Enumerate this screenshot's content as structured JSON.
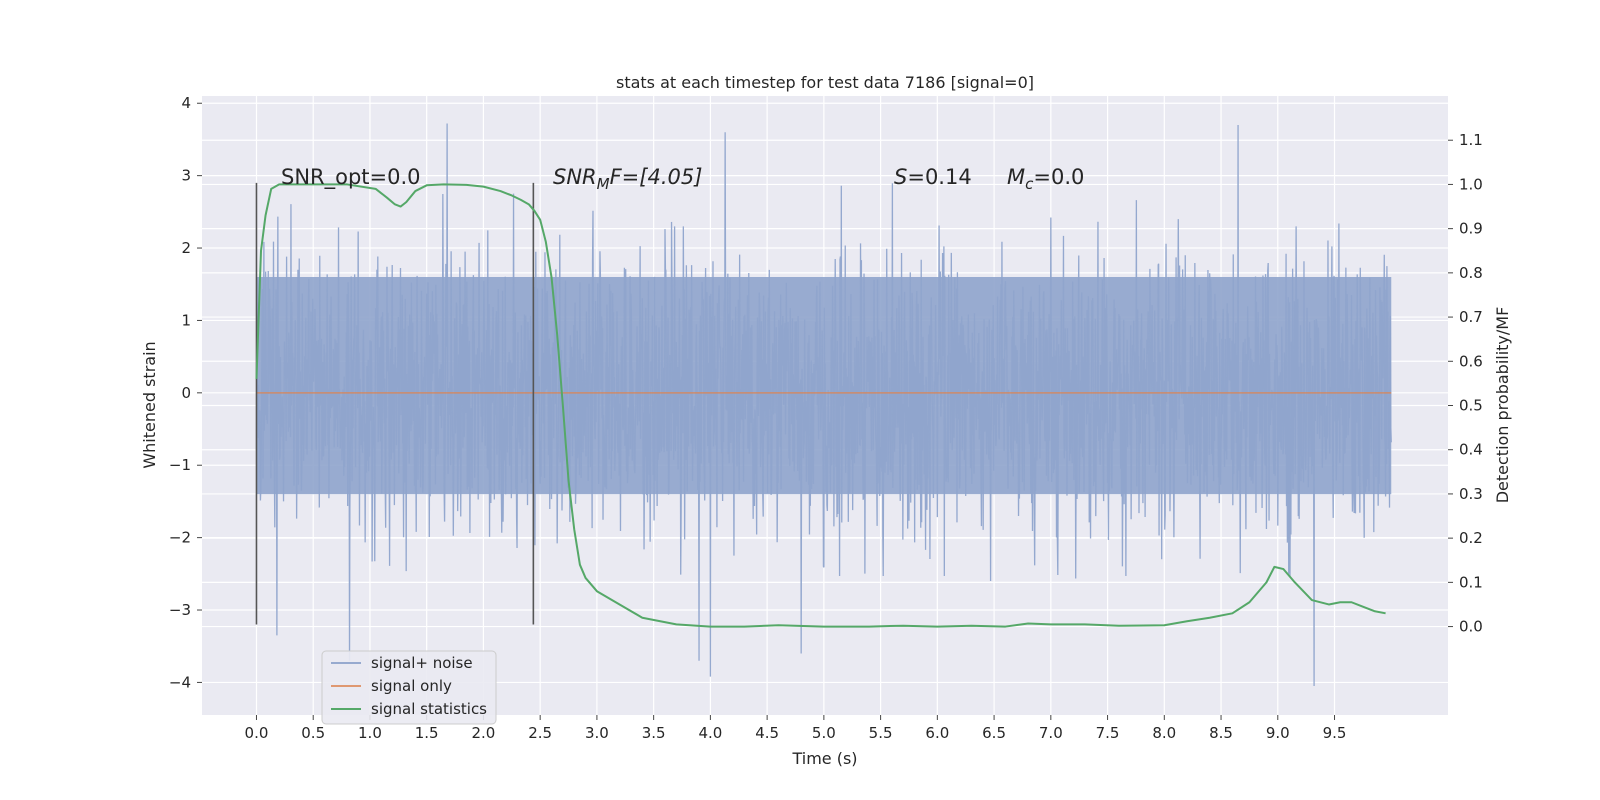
{
  "chart_data": {
    "type": "line",
    "title": "stats at each timestep for test data 7186 [signal=0]",
    "xlabel": "Time (s)",
    "ylabel": "Whitened strain",
    "y2label": "Detection probability/MF",
    "xlim": [
      -0.48,
      10.5
    ],
    "ylim": [
      -4.45,
      4.1
    ],
    "y2lim": [
      -0.2,
      1.2
    ],
    "x_ticks": [
      0.0,
      0.5,
      1.0,
      1.5,
      2.0,
      2.5,
      3.0,
      3.5,
      4.0,
      4.5,
      5.0,
      5.5,
      6.0,
      6.5,
      7.0,
      7.5,
      8.0,
      8.5,
      9.0,
      9.5
    ],
    "x_tick_labels": [
      "0.0",
      "0.5",
      "1.0",
      "1.5",
      "2.0",
      "2.5",
      "3.0",
      "3.5",
      "4.0",
      "4.5",
      "5.0",
      "5.5",
      "6.0",
      "6.5",
      "7.0",
      "7.5",
      "8.0",
      "8.5",
      "9.0",
      "9.5"
    ],
    "y_ticks": [
      4,
      3,
      2,
      1,
      0,
      -1,
      -2,
      -3,
      -4
    ],
    "y_tick_labels": [
      "4",
      "3",
      "2",
      "1",
      "0",
      "−1",
      "−2",
      "−3",
      "−4"
    ],
    "y2_ticks": [
      1.1,
      1.0,
      0.9,
      0.8,
      0.7,
      0.6,
      0.5,
      0.4,
      0.3,
      0.2,
      0.1,
      0.0
    ],
    "y2_tick_labels": [
      "1.1",
      "1.0",
      "0.9",
      "0.8",
      "0.7",
      "0.6",
      "0.5",
      "0.4",
      "0.3",
      "0.2",
      "0.1",
      "0.0"
    ],
    "grid": true,
    "legend_position": "lower-left",
    "annotations": {
      "snr_opt": "SNR_opt=0.0",
      "snr_mf_base": "SNR",
      "snr_mf_sub": "M",
      "snr_mf_tail": "F=[4.05]",
      "s_base": "S",
      "s_tail": "=0.14",
      "mc_base": "M",
      "mc_sub": "c",
      "mc_tail": "=0.0"
    },
    "vertical_markers": [
      0.0,
      2.44
    ],
    "vertical_marker_range": [
      -3.2,
      2.9
    ],
    "series": [
      {
        "name": "signal+ noise",
        "color": "#8fa4cc",
        "axis": "left",
        "x_range": [
          0.0,
          10.0
        ],
        "envelope": {
          "typical_max": 2.6,
          "typical_min": -2.2,
          "dense_max": 1.6,
          "dense_min": -1.4
        },
        "notable_peaks": [
          {
            "x": 1.68,
            "y": 3.72
          },
          {
            "x": 4.13,
            "y": 3.6
          },
          {
            "x": 8.65,
            "y": 3.7
          },
          {
            "x": 0.82,
            "y": -3.7
          },
          {
            "x": 3.9,
            "y": -3.7
          },
          {
            "x": 4.0,
            "y": -3.92
          },
          {
            "x": 4.8,
            "y": -3.6
          },
          {
            "x": 9.32,
            "y": -4.05
          },
          {
            "x": 0.18,
            "y": -3.35
          }
        ]
      },
      {
        "name": "signal only",
        "color": "#dd8452",
        "axis": "left",
        "x": [
          0.0,
          10.0
        ],
        "y": [
          0.0,
          0.0
        ]
      },
      {
        "name": "signal statistics",
        "color": "#55a868",
        "axis": "right",
        "x": [
          0.0,
          0.04,
          0.08,
          0.13,
          0.2,
          0.3,
          0.5,
          0.8,
          1.05,
          1.15,
          1.22,
          1.27,
          1.32,
          1.4,
          1.5,
          1.65,
          1.85,
          2.0,
          2.15,
          2.25,
          2.33,
          2.4,
          2.45,
          2.5,
          2.55,
          2.6,
          2.65,
          2.7,
          2.75,
          2.8,
          2.85,
          2.9,
          3.0,
          3.2,
          3.4,
          3.7,
          4.0,
          4.3,
          4.6,
          5.0,
          5.4,
          5.7,
          6.0,
          6.3,
          6.6,
          6.8,
          7.0,
          7.3,
          7.6,
          8.0,
          8.2,
          8.4,
          8.6,
          8.75,
          8.9,
          8.97,
          9.05,
          9.15,
          9.3,
          9.45,
          9.55,
          9.65,
          9.75,
          9.85,
          9.95
        ],
        "y": [
          0.56,
          0.85,
          0.93,
          0.99,
          1.0,
          1.0,
          1.0,
          1.0,
          0.99,
          0.97,
          0.955,
          0.95,
          0.96,
          0.985,
          0.998,
          1.0,
          0.999,
          0.995,
          0.985,
          0.975,
          0.965,
          0.955,
          0.94,
          0.92,
          0.87,
          0.79,
          0.66,
          0.5,
          0.33,
          0.22,
          0.14,
          0.11,
          0.08,
          0.05,
          0.02,
          0.005,
          0.0,
          0.0,
          0.003,
          0.0,
          0.0,
          0.002,
          0.0,
          0.002,
          0.0,
          0.007,
          0.005,
          0.005,
          0.002,
          0.003,
          0.012,
          0.02,
          0.03,
          0.055,
          0.1,
          0.135,
          0.13,
          0.1,
          0.06,
          0.05,
          0.055,
          0.055,
          0.045,
          0.035,
          0.03
        ]
      }
    ]
  }
}
